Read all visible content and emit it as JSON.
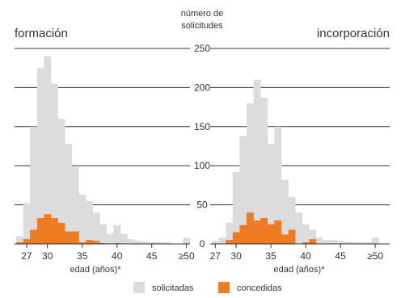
{
  "chart_data": {
    "type": "bar",
    "y_axis_title": [
      "número de",
      "solicitudes"
    ],
    "yticks": [
      0,
      50,
      100,
      150,
      200,
      250
    ],
    "ylim": [
      0,
      250
    ],
    "grid": true,
    "legend_position": "bottom",
    "legend": [
      {
        "label": "solicitadas",
        "color": "#dcdcdc"
      },
      {
        "label": "concedidas",
        "color": "#ee7a22"
      }
    ],
    "panels": [
      {
        "title": "formación",
        "xlabel": "edad (años)*",
        "x_tick_labels": [
          "27",
          "30",
          "35",
          "40",
          "45",
          "≥50"
        ],
        "x_tick_ages": [
          27,
          30,
          35,
          40,
          45,
          50
        ],
        "ages": [
          26,
          27,
          28,
          29,
          30,
          31,
          32,
          33,
          34,
          35,
          36,
          37,
          38,
          39,
          40,
          41,
          42,
          43,
          44,
          45,
          46,
          47,
          48,
          49,
          50
        ],
        "series": [
          {
            "name": "solicitadas",
            "values": [
              10,
              52,
              150,
              225,
              240,
              205,
              160,
              128,
              98,
              63,
              55,
              40,
              25,
              13,
              24,
              13,
              6,
              4,
              3,
              2,
              2,
              2,
              0,
              0,
              8
            ]
          },
          {
            "name": "concedidas",
            "values": [
              2,
              6,
              18,
              33,
              38,
              33,
              27,
              16,
              16,
              2,
              5,
              4,
              1,
              0,
              1,
              0,
              0,
              0,
              0,
              0,
              0,
              0,
              0,
              0,
              0
            ]
          }
        ]
      },
      {
        "title": "incorporación",
        "xlabel": "edad (años)*",
        "x_tick_labels": [
          "27",
          "30",
          "35",
          "40",
          "45",
          "≥50"
        ],
        "x_tick_ages": [
          27,
          30,
          35,
          40,
          45,
          50
        ],
        "ages": [
          27,
          28,
          29,
          30,
          31,
          32,
          33,
          34,
          35,
          36,
          37,
          38,
          39,
          40,
          41,
          42,
          43,
          44,
          45,
          46,
          47,
          48,
          49,
          50
        ],
        "series": [
          {
            "name": "solicitadas",
            "values": [
              4,
              8,
              27,
              92,
              138,
              180,
              210,
              187,
              128,
              150,
              82,
              60,
              40,
              25,
              18,
              8,
              5,
              5,
              4,
              3,
              2,
              2,
              2,
              8
            ]
          },
          {
            "name": "concedidas",
            "values": [
              0,
              0,
              5,
              15,
              24,
              40,
              30,
              33,
              25,
              30,
              12,
              18,
              0,
              2,
              6,
              0,
              0,
              0,
              0,
              0,
              0,
              0,
              0,
              0
            ]
          }
        ]
      }
    ]
  }
}
